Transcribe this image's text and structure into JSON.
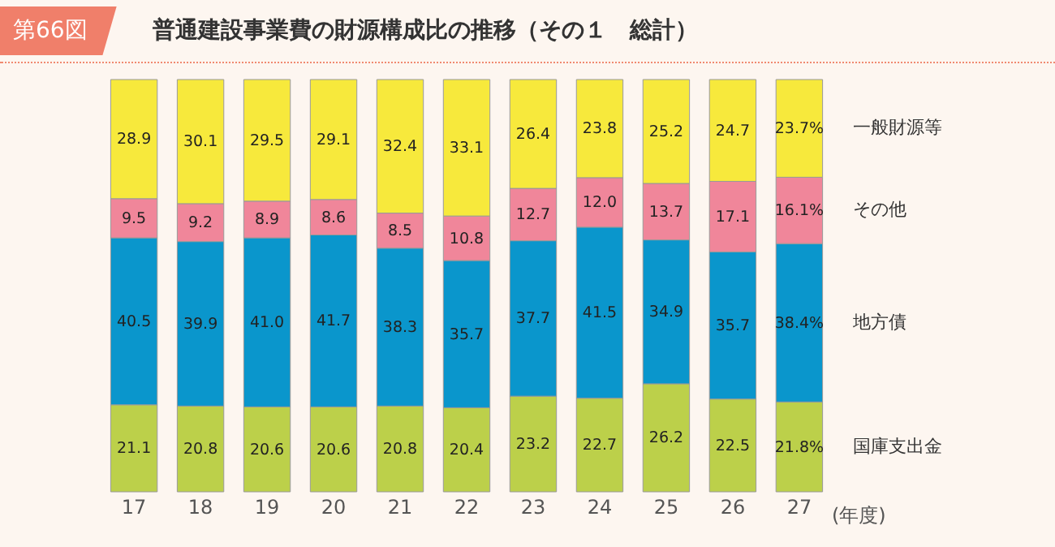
{
  "chart_data": {
    "type": "bar",
    "stacked": true,
    "title": "普通建設事業費の財源構成比の推移（その１　総計）",
    "annotations": [
      "第66図"
    ],
    "xlabel": "(年度)",
    "categories": [
      "17",
      "18",
      "19",
      "20",
      "21",
      "22",
      "23",
      "24",
      "25",
      "26",
      "27"
    ],
    "series": [
      {
        "name": "国庫支出金",
        "color": "#bcd04a",
        "values": [
          21.1,
          20.8,
          20.6,
          20.6,
          20.8,
          20.4,
          23.2,
          22.7,
          26.2,
          22.5,
          21.8
        ],
        "value_labels": [
          "21.1",
          "20.8",
          "20.6",
          "20.6",
          "20.8",
          "20.4",
          "23.2",
          "22.7",
          "26.2",
          "22.5",
          "21.8%"
        ]
      },
      {
        "name": "地方債",
        "color": "#0a96cc",
        "values": [
          40.5,
          39.9,
          41.0,
          41.7,
          38.3,
          35.7,
          37.7,
          41.5,
          34.9,
          35.7,
          38.4
        ],
        "value_labels": [
          "40.5",
          "39.9",
          "41.0",
          "41.7",
          "38.3",
          "35.7",
          "37.7",
          "41.5",
          "34.9",
          "35.7",
          "38.4%"
        ]
      },
      {
        "name": "その他",
        "color": "#f0869a",
        "values": [
          9.5,
          9.2,
          8.9,
          8.6,
          8.5,
          10.8,
          12.7,
          12.0,
          13.7,
          17.1,
          16.1
        ],
        "value_labels": [
          "9.5",
          "9.2",
          "8.9",
          "8.6",
          "8.5",
          "10.8",
          "12.7",
          "12.0",
          "13.7",
          "17.1",
          "16.1%"
        ]
      },
      {
        "name": "一般財源等",
        "color": "#f7e93c",
        "values": [
          28.9,
          30.1,
          29.5,
          29.1,
          32.4,
          33.1,
          26.4,
          23.8,
          25.2,
          24.7,
          23.7
        ],
        "value_labels": [
          "28.9",
          "30.1",
          "29.5",
          "29.1",
          "32.4",
          "33.1",
          "26.4",
          "23.8",
          "25.2",
          "24.7",
          "23.7%"
        ]
      }
    ]
  }
}
